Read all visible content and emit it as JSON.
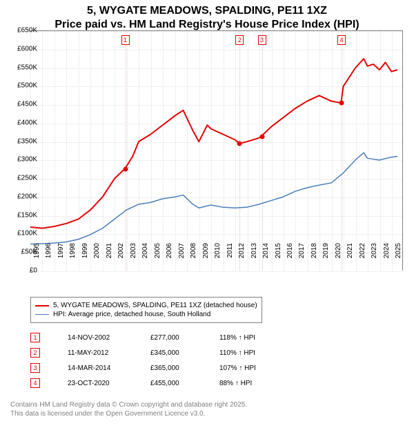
{
  "title_line1": "5, WYGATE MEADOWS, SPALDING, PE11 1XZ",
  "title_line2": "Price paid vs. HM Land Registry's House Price Index (HPI)",
  "title_fontsize": 12,
  "chart": {
    "type": "line",
    "background_color": "#ffffff",
    "grid_color": "#e0e0e0",
    "sale_vline_color": "#e5b8b8",
    "axis_color": "#808080",
    "x": {
      "min": 1995,
      "max": 2025.9,
      "ticks": [
        1995,
        1996,
        1997,
        1998,
        1999,
        2000,
        2001,
        2002,
        2003,
        2004,
        2005,
        2006,
        2007,
        2008,
        2009,
        2010,
        2011,
        2012,
        2013,
        2014,
        2015,
        2016,
        2017,
        2018,
        2019,
        2020,
        2021,
        2022,
        2023,
        2024,
        2025
      ],
      "label_fontsize": 10
    },
    "y": {
      "min": 0,
      "max": 650000,
      "ticks": [
        0,
        50000,
        100000,
        150000,
        200000,
        250000,
        300000,
        350000,
        400000,
        450000,
        500000,
        550000,
        600000,
        650000
      ],
      "tick_labels": [
        "£0",
        "£50K",
        "£100K",
        "£150K",
        "£200K",
        "£250K",
        "£300K",
        "£350K",
        "£400K",
        "£450K",
        "£500K",
        "£550K",
        "£600K",
        "£650K"
      ],
      "label_fontsize": 10
    },
    "series": [
      {
        "name": "5, WYGATE MEADOWS, SPALDING, PE11 1XZ (detached house)",
        "color": "#e60000",
        "line_width": 2,
        "x": [
          1995,
          1996,
          1997,
          1998,
          1999,
          2000,
          2001,
          2002,
          2002.87,
          2003.5,
          2004,
          2005,
          2006,
          2007,
          2007.7,
          2008.5,
          2009,
          2009.7,
          2010,
          2011,
          2012,
          2012.36,
          2013,
          2014,
          2014.2,
          2015,
          2016,
          2017,
          2018,
          2019,
          2020,
          2020.81,
          2021,
          2022,
          2022.7,
          2023,
          2023.5,
          2024,
          2024.5,
          2025,
          2025.5
        ],
        "y": [
          118000,
          115000,
          120000,
          128000,
          140000,
          165000,
          200000,
          250000,
          277000,
          310000,
          350000,
          370000,
          395000,
          420000,
          435000,
          380000,
          350000,
          395000,
          385000,
          370000,
          355000,
          345000,
          350000,
          360000,
          365000,
          390000,
          415000,
          440000,
          460000,
          475000,
          460000,
          455000,
          500000,
          550000,
          575000,
          555000,
          560000,
          545000,
          565000,
          540000,
          545000
        ]
      },
      {
        "name": "HPI: Average price, detached house, South Holland",
        "color": "#4a7ebb",
        "line_width": 1.5,
        "x": [
          1995,
          1996,
          1997,
          1998,
          1999,
          2000,
          2001,
          2002,
          2003,
          2004,
          2005,
          2006,
          2007,
          2007.7,
          2008.5,
          2009,
          2010,
          2011,
          2012,
          2013,
          2014,
          2015,
          2016,
          2017,
          2018,
          2019,
          2020,
          2021,
          2022,
          2022.7,
          2023,
          2024,
          2025,
          2025.5
        ],
        "y": [
          72000,
          73000,
          75000,
          78000,
          85000,
          98000,
          115000,
          140000,
          165000,
          180000,
          185000,
          195000,
          200000,
          205000,
          180000,
          170000,
          178000,
          172000,
          170000,
          172000,
          180000,
          190000,
          200000,
          215000,
          225000,
          232000,
          238000,
          265000,
          300000,
          320000,
          305000,
          300000,
          308000,
          310000
        ]
      }
    ],
    "sales": [
      {
        "n": "1",
        "year": 2002.87,
        "date": "14-NOV-2002",
        "price": "£277,000",
        "hpi": "118% ↑ HPI",
        "value": 277000
      },
      {
        "n": "2",
        "year": 2012.36,
        "date": "11-MAY-2012",
        "price": "£345,000",
        "hpi": "110% ↑ HPI",
        "value": 345000
      },
      {
        "n": "3",
        "year": 2014.2,
        "date": "14-MAR-2014",
        "price": "£365,000",
        "hpi": "107% ↑ HPI",
        "value": 365000
      },
      {
        "n": "4",
        "year": 2020.81,
        "date": "23-OCT-2020",
        "price": "£455,000",
        "hpi": "88% ↑ HPI",
        "value": 455000
      }
    ],
    "sale_marker_color": "#e60000",
    "sale_marker_top": 6
  },
  "legend": {
    "items": [
      {
        "color": "#e60000",
        "width": 2,
        "label": "5, WYGATE MEADOWS, SPALDING, PE11 1XZ (detached house)"
      },
      {
        "color": "#4a7ebb",
        "width": 1.5,
        "label": "HPI: Average price, detached house, South Holland"
      }
    ]
  },
  "attribution": {
    "line1": "Contains HM Land Registry data © Crown copyright and database right 2025.",
    "line2": "This data is licensed under the Open Government Licence v3.0."
  }
}
